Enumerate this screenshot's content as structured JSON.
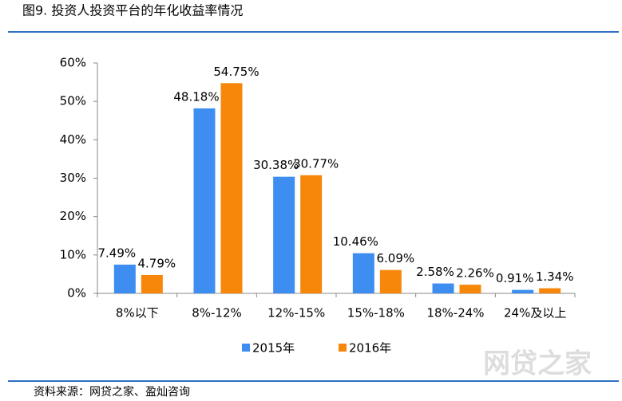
{
  "chart_data": {
    "type": "bar",
    "title": "图9. 投资人投资平台的年化收益率情况",
    "source": "资料来源：网贷之家、盈灿咨询",
    "watermark": "网贷之家",
    "categories": [
      "8%以下",
      "8%-12%",
      "12%-15%",
      "15%-18%",
      "18%-24%",
      "24%及以上"
    ],
    "series": [
      {
        "name": "2015年",
        "color": "#3d8ef0",
        "values": [
          7.49,
          48.18,
          30.38,
          10.46,
          2.58,
          0.91
        ],
        "value_labels": [
          "7.49%",
          "48.18%",
          "30.38%",
          "10.46%",
          "2.58%",
          "0.91%"
        ]
      },
      {
        "name": "2016年",
        "color": "#f7870b",
        "values": [
          4.79,
          54.75,
          30.77,
          6.09,
          2.26,
          1.34
        ],
        "value_labels": [
          "4.79%",
          "54.75%",
          "30.77%",
          "6.09%",
          "2.26%",
          "1.34%"
        ]
      }
    ],
    "ylim": [
      0,
      60
    ],
    "yticks": [
      {
        "value": 0,
        "label": "0%"
      },
      {
        "value": 10,
        "label": "10%"
      },
      {
        "value": 20,
        "label": "20%"
      },
      {
        "value": 30,
        "label": "30%"
      },
      {
        "value": 40,
        "label": "40%"
      },
      {
        "value": 50,
        "label": "50%"
      },
      {
        "value": 60,
        "label": "60%"
      }
    ],
    "legend": "bottom"
  }
}
